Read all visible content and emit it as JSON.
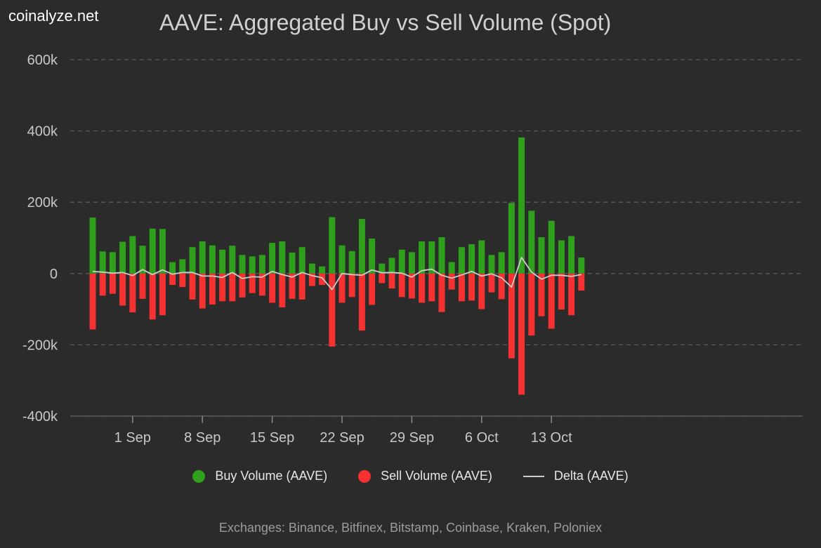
{
  "brand": "coinalyze.net",
  "title": "AAVE: Aggregated Buy vs Sell Volume (Spot)",
  "footer": "Exchanges: Binance, Bitfinex, Bitstamp, Coinbase, Kraken, Poloniex",
  "colors": {
    "buy": "#2ea01c",
    "sell": "#f53131",
    "delta": "#cccccc",
    "grid": "#5a5a5a",
    "background": "#2b2b2b"
  },
  "chart_data": {
    "type": "bar",
    "title": "AAVE: Aggregated Buy vs Sell Volume (Spot)",
    "xlabel": "",
    "ylabel": "",
    "ylim": [
      -400000,
      600000
    ],
    "yticks": [
      600000,
      400000,
      200000,
      0,
      -200000,
      -400000
    ],
    "ytick_labels": [
      "600k",
      "400k",
      "200k",
      "0",
      "-200k",
      "-400k"
    ],
    "x_start_date": "2024-08-28",
    "xticks": [
      {
        "date": "2024-09-01",
        "label": "1 Sep"
      },
      {
        "date": "2024-09-08",
        "label": "8 Sep"
      },
      {
        "date": "2024-09-15",
        "label": "15 Sep"
      },
      {
        "date": "2024-09-22",
        "label": "22 Sep"
      },
      {
        "date": "2024-09-29",
        "label": "29 Sep"
      },
      {
        "date": "2024-10-06",
        "label": "6 Oct"
      },
      {
        "date": "2024-10-13",
        "label": "13 Oct"
      }
    ],
    "grid": true,
    "legend": "bottom",
    "series": [
      {
        "name": "Buy Volume (AAVE)",
        "values": [
          157000,
          62000,
          60000,
          89000,
          105000,
          78000,
          126000,
          125000,
          32000,
          40000,
          74000,
          90000,
          79000,
          67000,
          78000,
          52000,
          48000,
          52000,
          86000,
          90000,
          59000,
          74000,
          28000,
          20000,
          158000,
          79000,
          63000,
          153000,
          98000,
          28000,
          44000,
          67000,
          60000,
          90000,
          90000,
          102000,
          32000,
          74000,
          82000,
          93000,
          52000,
          60000,
          198000,
          382000,
          176000,
          102000,
          148000,
          93000,
          105000,
          45000
        ]
      },
      {
        "name": "Sell Volume (AAVE)",
        "values": [
          -157000,
          -62000,
          -57000,
          -90000,
          -109000,
          -71000,
          -129000,
          -117000,
          -32000,
          -38000,
          -73000,
          -98000,
          -87000,
          -78000,
          -78000,
          -67000,
          -55000,
          -62000,
          -82000,
          -95000,
          -71000,
          -73000,
          -35000,
          -32000,
          -205000,
          -82000,
          -66000,
          -160000,
          -88000,
          -27000,
          -42000,
          -66000,
          -70000,
          -82000,
          -78000,
          -108000,
          -45000,
          -78000,
          -76000,
          -100000,
          -53000,
          -72000,
          -238000,
          -340000,
          -174000,
          -120000,
          -155000,
          -101000,
          -117000,
          -48000
        ]
      },
      {
        "name": "Delta (AAVE)",
        "values": [
          6000,
          4000,
          1000,
          3000,
          -6000,
          11000,
          -3000,
          10000,
          -2000,
          3000,
          3000,
          -7000,
          -7000,
          -11000,
          3000,
          -14000,
          -9000,
          -10000,
          6000,
          -3000,
          -10000,
          3000,
          -6000,
          -12000,
          -45000,
          0,
          -3000,
          -5000,
          10000,
          2000,
          3000,
          1000,
          -10000,
          8000,
          12000,
          -5000,
          -13000,
          -4000,
          6000,
          -7000,
          -1000,
          -12000,
          -38000,
          45000,
          4000,
          -16000,
          -5000,
          -5000,
          -8000,
          -3000
        ]
      }
    ]
  }
}
